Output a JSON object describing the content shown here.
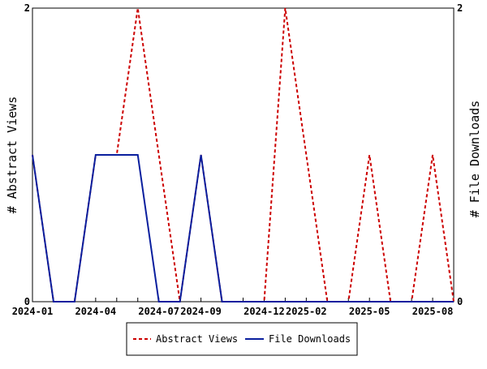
{
  "chart_data": {
    "type": "line",
    "title": "",
    "x": [
      "2024-01",
      "2024-02",
      "2024-03",
      "2024-04",
      "2024-05",
      "2024-06",
      "2024-07",
      "2024-08",
      "2024-09",
      "2024-10",
      "2024-11",
      "2024-12",
      "2025-01",
      "2025-02",
      "2025-03",
      "2025-04",
      "2025-05",
      "2025-06",
      "2025-07",
      "2025-08",
      "2025-09"
    ],
    "x_tick_labels": [
      "2024-01",
      "2024-04",
      "2024-07",
      "2024-09",
      "2024-12",
      "2025-02",
      "2025-05",
      "2025-08"
    ],
    "ylabel_left": "# Abstract Views",
    "ylabel_right": "# File Downloads",
    "ylim_left": [
      0,
      2
    ],
    "ylim_right": [
      0,
      2
    ],
    "y_ticks_left": [
      "0",
      "2"
    ],
    "y_ticks_right": [
      "0",
      "2"
    ],
    "grid": false,
    "legend_position": "bottom",
    "series": [
      {
        "name": "Abstract Views",
        "axis": "left",
        "style": "dashed",
        "color": "#cc0000",
        "values": [
          1,
          0,
          0,
          1,
          1,
          2,
          1,
          0,
          1,
          0,
          0,
          0,
          2,
          1,
          0,
          0,
          1,
          0,
          0,
          1,
          0
        ]
      },
      {
        "name": "File Downloads",
        "axis": "right",
        "style": "solid",
        "color": "#0a1f9e",
        "values": [
          1,
          0,
          0,
          1,
          1,
          1,
          0,
          0,
          1,
          0,
          0,
          0,
          0,
          0,
          0,
          0,
          0,
          0,
          0,
          0,
          0
        ]
      }
    ]
  }
}
